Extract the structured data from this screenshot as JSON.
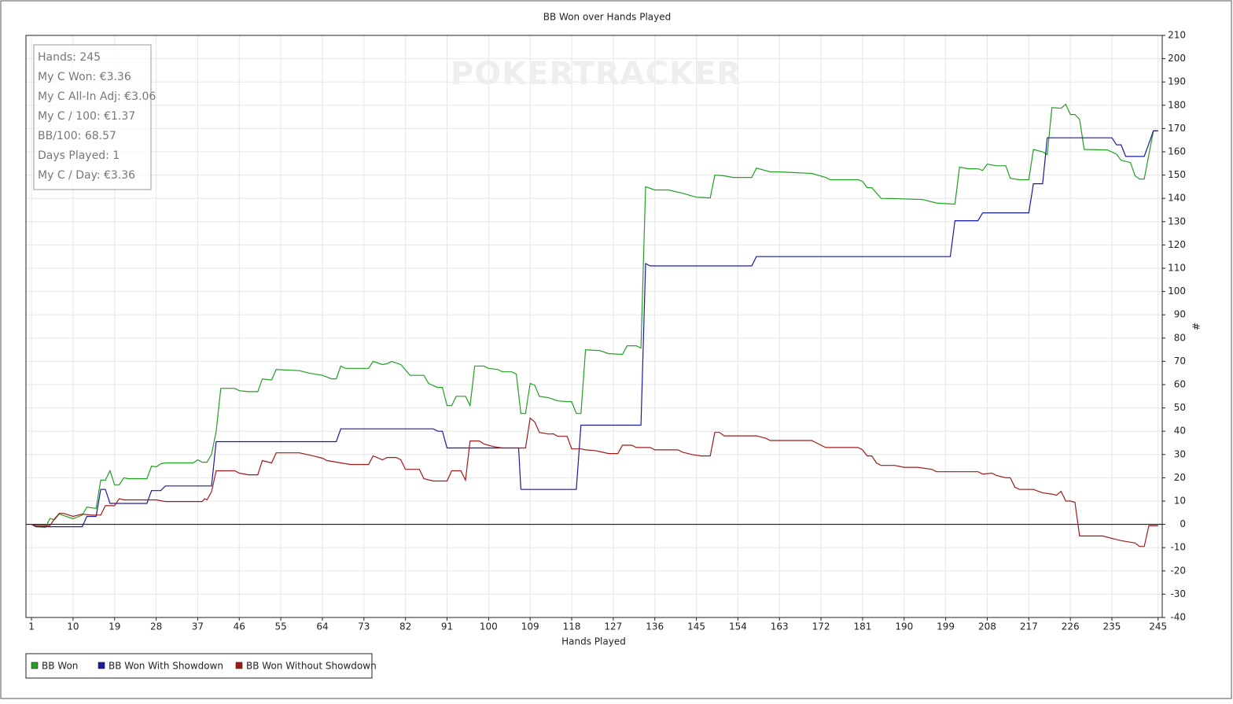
{
  "chart_data": {
    "type": "line",
    "title": "BB Won over Hands Played",
    "x_label": "Hands Played",
    "y_label": "#",
    "y_axis_side": "right",
    "watermark": "POKERTRACKER",
    "info": [
      "Hands: 245",
      "My C Won: €3.36",
      "My C All-In Adj: €3.06",
      "My C / 100: €1.37",
      "BB/100: 68.57",
      "Days Played: 1",
      "My C / Day: €3.36"
    ],
    "xlim": [
      -0.2,
      245.9
    ],
    "ylim": [
      -40,
      210
    ],
    "xticks": [
      1,
      10,
      19,
      28,
      37,
      46,
      55,
      64,
      73,
      82,
      91,
      100,
      109,
      118,
      127,
      136,
      145,
      154,
      163,
      172,
      181,
      190,
      199,
      208,
      217,
      226,
      235,
      245
    ],
    "yticks": [
      -40,
      -30,
      -20,
      -10,
      0,
      10,
      20,
      30,
      40,
      50,
      60,
      70,
      80,
      90,
      100,
      110,
      120,
      130,
      140,
      150,
      160,
      170,
      180,
      190,
      200,
      210
    ],
    "grid": true,
    "legend": "bottom-left",
    "series": [
      {
        "name": "BB Won",
        "color": "#22a022",
        "x": [
          1,
          2,
          4,
          5,
          6,
          7,
          8,
          10,
          12,
          13,
          15,
          16,
          17,
          18,
          19,
          20,
          21,
          22,
          26,
          27,
          28,
          29,
          30,
          36,
          37,
          38,
          39,
          40,
          41,
          42,
          45,
          46,
          48,
          50,
          51,
          53,
          54,
          59,
          61,
          64,
          66,
          67,
          68,
          69,
          71,
          74,
          75,
          77,
          78,
          79,
          81,
          83,
          86,
          87,
          89,
          90,
          91,
          92,
          93,
          95,
          96,
          97,
          99,
          100,
          102,
          103,
          105,
          106,
          107,
          108,
          109,
          110,
          111,
          113,
          115,
          117,
          118,
          119,
          120,
          121,
          123,
          124,
          126,
          129,
          130,
          132,
          133,
          134,
          136,
          139,
          142,
          145,
          148,
          149,
          151,
          153,
          157,
          158,
          161,
          163,
          170,
          173,
          174,
          180,
          181,
          182,
          183,
          185,
          188,
          194,
          197,
          201,
          202,
          204,
          206,
          207,
          208,
          210,
          212,
          213,
          215,
          217,
          218,
          220,
          221,
          222,
          224,
          225,
          226,
          227,
          228,
          229,
          234,
          236,
          237,
          239,
          240,
          241,
          242,
          243,
          244,
          245
        ],
        "values": [
          0,
          -1,
          -1.3,
          2.5,
          2,
          4.5,
          3.8,
          2.4,
          4,
          7.4,
          6.8,
          19,
          19,
          23,
          17,
          17,
          20,
          19.6,
          19.6,
          25,
          24.7,
          26,
          26.4,
          26.4,
          27.7,
          26.7,
          26.7,
          30,
          40,
          58.4,
          58.4,
          57.4,
          57,
          57,
          62.5,
          62,
          66.5,
          66,
          65,
          64,
          62.5,
          62.5,
          68,
          67,
          67,
          67,
          70,
          68.6,
          69,
          70,
          68.6,
          64,
          64,
          60.5,
          58.8,
          58.8,
          51,
          51,
          55,
          55,
          51,
          68,
          68,
          67,
          66.5,
          65.5,
          65.5,
          64.5,
          47.6,
          47.6,
          60.5,
          59.8,
          55,
          54.4,
          53,
          52.7,
          52.7,
          47.6,
          47.6,
          75,
          74.7,
          74.7,
          73.3,
          73,
          76.7,
          76.7,
          75.7,
          145,
          143.6,
          143.6,
          142.2,
          140.5,
          140.2,
          150,
          149.7,
          149,
          149,
          153,
          151.4,
          151.4,
          150.7,
          149,
          148,
          148,
          147.3,
          144.6,
          144.6,
          140,
          139.9,
          139.5,
          138,
          137.5,
          153.4,
          152.7,
          152.7,
          152,
          154.7,
          154,
          154,
          148.6,
          148,
          148,
          161,
          160,
          158.8,
          179,
          178.7,
          180.4,
          176,
          176,
          174,
          161,
          160.8,
          159,
          156.4,
          155.4,
          149.7,
          148.3,
          148.3,
          158.8,
          169,
          169
        ]
      },
      {
        "name": "BB Won With Showdown",
        "color": "#1a1aa0",
        "x": [
          1,
          2,
          12,
          13,
          15,
          16,
          17,
          18,
          26,
          27,
          29,
          30,
          40,
          41,
          67,
          68,
          88,
          89,
          90,
          91,
          106.5,
          107,
          119,
          120,
          133,
          134,
          135,
          157,
          158,
          200,
          201,
          206,
          207,
          217,
          218,
          220,
          221,
          235,
          236,
          237,
          238,
          242,
          244,
          245
        ],
        "values": [
          0,
          -1,
          -1,
          3.4,
          3.4,
          15,
          15,
          9,
          9,
          14.5,
          14.5,
          16.5,
          16.5,
          35.5,
          35.5,
          41,
          41,
          40,
          40,
          32.8,
          32.8,
          15,
          15,
          42.6,
          42.6,
          112,
          111,
          111,
          115,
          115,
          130.4,
          130.4,
          133.8,
          133.8,
          146.3,
          146.3,
          166,
          166,
          163,
          163,
          158,
          158,
          169,
          169
        ]
      },
      {
        "name": "BB Won Without Showdown",
        "color": "#a01a1a",
        "x": [
          1,
          2,
          5,
          6,
          7,
          8,
          10,
          12,
          14,
          16,
          17,
          19,
          20,
          21,
          28,
          30,
          38,
          38.5,
          39,
          40,
          41,
          45,
          46,
          48,
          50,
          51,
          53,
          54,
          59,
          62,
          64,
          65,
          68,
          70,
          74,
          75,
          77,
          78,
          80,
          81,
          82,
          85,
          86,
          88,
          91,
          92,
          94,
          95,
          96,
          98,
          99,
          101,
          103,
          108,
          109,
          110,
          111,
          113,
          114,
          115,
          117,
          118,
          120,
          121,
          123,
          124,
          126,
          128,
          129,
          131,
          132,
          135,
          136,
          141,
          142,
          144,
          146,
          148,
          149,
          150,
          151,
          158,
          160,
          161,
          170,
          171,
          173,
          180,
          181,
          182,
          183,
          184,
          185,
          188,
          190,
          193,
          196,
          197,
          206,
          207,
          209,
          210,
          212,
          213,
          214,
          215,
          218,
          220,
          222,
          223,
          224,
          225,
          226,
          227,
          228,
          233,
          235,
          237,
          240,
          241,
          242,
          243,
          245
        ],
        "values": [
          0,
          -0.5,
          -0.5,
          2.4,
          4.7,
          4.7,
          3.4,
          4.4,
          4,
          4,
          8,
          8,
          11,
          10.5,
          10.5,
          9.8,
          9.8,
          11,
          10.5,
          14,
          23,
          23,
          22,
          21.3,
          21.3,
          27.4,
          26.4,
          30.7,
          30.7,
          29.4,
          28.4,
          27.4,
          26.4,
          25.7,
          25.7,
          29.4,
          27.7,
          28.7,
          28.7,
          27.7,
          23.6,
          23.6,
          19.6,
          18.6,
          18.6,
          23,
          23,
          19,
          35.8,
          35.8,
          34.5,
          33.4,
          32.8,
          32.8,
          45.6,
          44,
          39.5,
          38.8,
          38.9,
          37.8,
          37.8,
          32.4,
          32.4,
          32,
          31.7,
          31.3,
          30.4,
          30.4,
          34,
          34,
          33,
          33,
          32,
          32,
          31,
          30,
          29.4,
          29.4,
          39.5,
          39.5,
          38,
          38,
          37,
          36,
          36,
          35,
          33,
          33,
          32,
          29.4,
          29.4,
          26.4,
          25.3,
          25.3,
          24.5,
          24.5,
          23.6,
          22.6,
          22.6,
          21.6,
          22,
          21,
          20,
          20,
          15.9,
          15,
          15,
          13.5,
          13,
          12.5,
          14.2,
          10,
          10,
          9.5,
          -5,
          -5,
          -6,
          -7,
          -8,
          -9.5,
          -9.5,
          -0.6,
          -0.6
        ]
      }
    ]
  }
}
